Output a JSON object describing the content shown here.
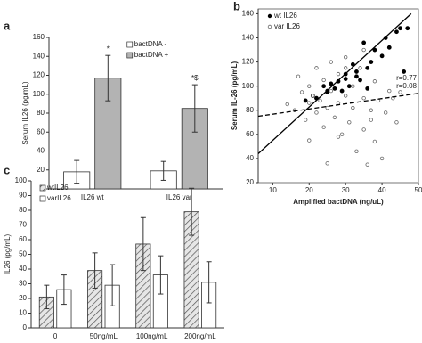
{
  "chart_data": [
    {
      "type": "bar",
      "label": "a",
      "ylabel": "Serum IL26 (pg/mL)",
      "categories": [
        "IL26 wt",
        "IL26 var"
      ],
      "series": [
        {
          "name": "bactDNA -",
          "color": "#ffffff",
          "values": [
            18,
            19
          ],
          "errors": [
            12,
            10
          ]
        },
        {
          "name": "bactDNA +",
          "color": "#b3b3b3",
          "values": [
            117,
            85
          ],
          "errors": [
            24,
            25
          ]
        }
      ],
      "annotations": [
        "*",
        "*$"
      ],
      "ylim": [
        0,
        160
      ],
      "yticks": [
        0,
        20,
        40,
        60,
        80,
        100,
        120,
        140,
        160
      ],
      "legend": "upper right"
    },
    {
      "type": "scatter",
      "label": "b",
      "ylabel": "Serum IL-26 (pg/mL)",
      "xlabel": "Amplified bactDNA (ng/uL)",
      "series": [
        {
          "name": "wt IL26",
          "color": "#000000",
          "filled": true,
          "x": [
            19,
            21,
            22,
            24,
            25,
            26,
            27,
            28,
            29,
            30,
            31,
            32,
            33,
            33,
            34,
            35,
            36,
            37,
            38,
            40,
            41,
            42,
            44,
            45,
            46,
            47,
            36,
            30,
            25
          ],
          "values": [
            88,
            92,
            90,
            100,
            95,
            102,
            98,
            104,
            96,
            110,
            100,
            118,
            108,
            112,
            105,
            136,
            115,
            120,
            130,
            125,
            140,
            132,
            145,
            148,
            112,
            148,
            98,
            106,
            96
          ]
        },
        {
          "name": "var IL26",
          "color": "#666666",
          "filled": false,
          "x": [
            14,
            16,
            17,
            18,
            19,
            20,
            20,
            21,
            22,
            22,
            23,
            24,
            24,
            25,
            26,
            26,
            27,
            28,
            28,
            29,
            30,
            30,
            31,
            32,
            32,
            33,
            34,
            35,
            35,
            36,
            37,
            38,
            38,
            39,
            40,
            41,
            42,
            43,
            44,
            45,
            20,
            25,
            30,
            28,
            35,
            37
          ],
          "values": [
            85,
            80,
            108,
            95,
            72,
            100,
            86,
            92,
            78,
            115,
            88,
            105,
            66,
            82,
            96,
            120,
            74,
            110,
            86,
            60,
            92,
            124,
            70,
            100,
            82,
            46,
            115,
            90,
            64,
            35,
            72,
            104,
            54,
            88,
            40,
            78,
            96,
            90,
            70,
            95,
            55,
            36,
            115,
            58,
            130,
            80
          ]
        }
      ],
      "lines": [
        {
          "label": "r=0.77",
          "dashed": false,
          "x": [
            6,
            48
          ],
          "y": [
            44,
            160
          ]
        },
        {
          "label": "r=0.08",
          "dashed": true,
          "x": [
            6,
            50
          ],
          "y": [
            75,
            94
          ]
        }
      ],
      "xlim": [
        6,
        50
      ],
      "xticks": [
        10,
        20,
        30,
        40,
        50
      ],
      "ylim": [
        20,
        164
      ],
      "yticks": [
        20,
        40,
        60,
        80,
        100,
        120,
        140,
        160
      ],
      "legend": "upper left"
    },
    {
      "type": "bar",
      "label": "c",
      "ylabel": "IL26 (pg/mL)",
      "categories": [
        "0",
        "50ng/mL",
        "100ng/mL",
        "200ng/mL"
      ],
      "series": [
        {
          "name": "wtIL26",
          "color": "#d9d9d9",
          "hatch": true,
          "values": [
            21,
            39,
            57,
            79
          ],
          "errors": [
            8,
            12,
            18,
            16
          ]
        },
        {
          "name": "varIL26",
          "color": "#ffffff",
          "values": [
            26,
            29,
            36,
            31
          ],
          "errors": [
            10,
            14,
            13,
            14
          ]
        }
      ],
      "ylim": [
        0,
        100
      ],
      "yticks": [
        0,
        10,
        20,
        30,
        40,
        50,
        60,
        70,
        80,
        90,
        100
      ],
      "legend": "upper left"
    }
  ]
}
